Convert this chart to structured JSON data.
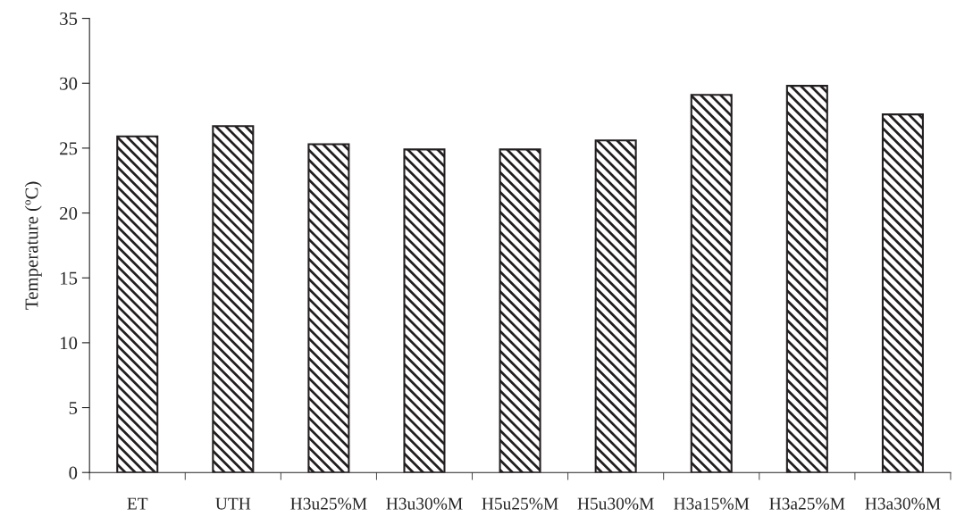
{
  "chart_data": {
    "type": "bar",
    "ylabel": "Temperature (ºC)",
    "categories": [
      "ET",
      "UTH",
      "H3u25%M",
      "H3u30%M",
      "H5u25%M",
      "H5u30%M",
      "H3a15%M",
      "H3a25%M",
      "H3a30%M"
    ],
    "values": [
      25.9,
      26.7,
      25.3,
      24.9,
      24.9,
      25.6,
      29.1,
      29.8,
      27.6
    ],
    "color": "#231f20",
    "ylim": [
      0,
      35
    ],
    "yticks": [
      0,
      5,
      10,
      15,
      20,
      25,
      30,
      35
    ],
    "grid": false
  }
}
